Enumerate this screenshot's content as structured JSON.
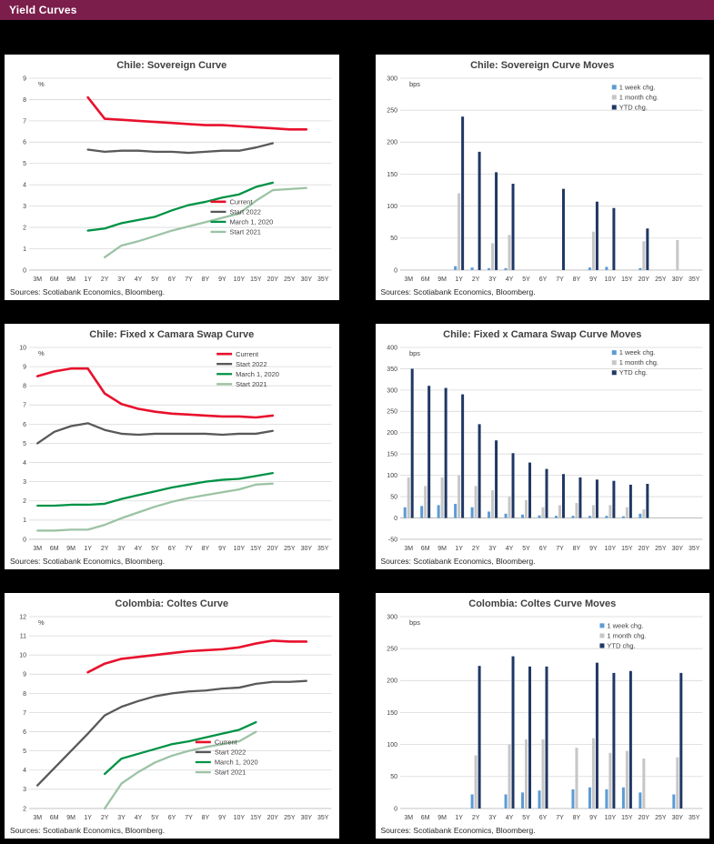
{
  "header": {
    "title": "Yield Curves"
  },
  "labels": {
    "sources": "Sources: Scotiabank Economics, Bloomberg."
  },
  "colors": {
    "header_bg": "#7B1E4B",
    "page_bg": "#000000",
    "panel_bg": "#FFFFFF",
    "current": "#E8112D",
    "start_2022": "#58595B",
    "march_2020": "#009245",
    "start_2021": "#9CC3A5",
    "week_chg": "#5B9BD5",
    "month_chg": "#C6C6C6",
    "ytd_chg": "#1F3864"
  },
  "chart_data": [
    {
      "type": "line",
      "title": "Chile: Sovereign Curve",
      "unit": "%",
      "ylim": [
        0,
        9
      ],
      "ytick": 1,
      "grid": true,
      "legend": {
        "x": 0.6,
        "y": 0.62
      },
      "categories": [
        "3M",
        "6M",
        "9M",
        "1Y",
        "2Y",
        "3Y",
        "4Y",
        "5Y",
        "6Y",
        "7Y",
        "8Y",
        "9Y",
        "10Y",
        "15Y",
        "20Y",
        "25Y",
        "30Y",
        "35Y"
      ],
      "series": [
        {
          "name": "Current",
          "color": "#E8112D",
          "values": [
            null,
            null,
            null,
            8.1,
            7.1,
            7.05,
            7.0,
            6.95,
            6.9,
            6.85,
            6.8,
            6.8,
            6.75,
            6.7,
            6.65,
            6.6,
            6.6,
            null
          ]
        },
        {
          "name": "Start 2022",
          "color": "#58595B",
          "values": [
            null,
            null,
            null,
            5.65,
            5.55,
            5.6,
            5.6,
            5.55,
            5.55,
            5.5,
            5.55,
            5.6,
            5.6,
            5.75,
            5.95,
            null,
            null,
            null
          ]
        },
        {
          "name": "March 1, 2020",
          "color": "#009245",
          "values": [
            null,
            null,
            null,
            1.85,
            1.95,
            2.2,
            2.35,
            2.5,
            2.8,
            3.05,
            3.2,
            3.4,
            3.55,
            3.9,
            4.1,
            null,
            null,
            null
          ]
        },
        {
          "name": "Start 2021",
          "color": "#9CC3A5",
          "values": [
            null,
            null,
            null,
            null,
            0.6,
            1.15,
            1.35,
            1.6,
            1.85,
            2.05,
            2.25,
            2.45,
            2.65,
            3.25,
            3.75,
            3.8,
            3.85,
            null
          ]
        }
      ]
    },
    {
      "type": "bar",
      "title": "Chile: Sovereign Curve Moves",
      "unit": "bps",
      "ylim": [
        0,
        300
      ],
      "ytick": 50,
      "grid": true,
      "legend": {
        "x": 0.7,
        "y": 0.03
      },
      "categories": [
        "3M",
        "6M",
        "9M",
        "1Y",
        "2Y",
        "3Y",
        "4Y",
        "5Y",
        "6Y",
        "7Y",
        "8Y",
        "9Y",
        "10Y",
        "15Y",
        "20Y",
        "25Y",
        "30Y",
        "35Y"
      ],
      "series": [
        {
          "name": "1 week chg.",
          "color": "#5B9BD5",
          "values": [
            0,
            0,
            0,
            6,
            4,
            3,
            3,
            0,
            0,
            0,
            0,
            4,
            5,
            0,
            3,
            0,
            0,
            0
          ]
        },
        {
          "name": "1 month chg.",
          "color": "#C6C6C6",
          "values": [
            0,
            0,
            0,
            120,
            0,
            42,
            55,
            0,
            0,
            0,
            0,
            60,
            0,
            0,
            45,
            0,
            47,
            0
          ]
        },
        {
          "name": "YTD chg.",
          "color": "#1F3864",
          "values": [
            0,
            0,
            0,
            240,
            185,
            153,
            135,
            0,
            0,
            127,
            0,
            107,
            97,
            0,
            65,
            0,
            0,
            0
          ]
        }
      ]
    },
    {
      "type": "line",
      "title": "Chile: Fixed x Camara Swap Curve",
      "unit": "%",
      "ylim": [
        0,
        10
      ],
      "ytick": 1,
      "grid": true,
      "legend": {
        "x": 0.62,
        "y": 0.01
      },
      "categories": [
        "3M",
        "6M",
        "9M",
        "1Y",
        "2Y",
        "3Y",
        "4Y",
        "5Y",
        "6Y",
        "7Y",
        "8Y",
        "9Y",
        "10Y",
        "15Y",
        "20Y",
        "25Y",
        "30Y",
        "35Y"
      ],
      "series": [
        {
          "name": "Current",
          "color": "#E8112D",
          "values": [
            8.5,
            8.75,
            8.9,
            8.9,
            7.6,
            7.05,
            6.8,
            6.65,
            6.55,
            6.5,
            6.45,
            6.4,
            6.4,
            6.35,
            6.45,
            null,
            null,
            null
          ]
        },
        {
          "name": "Start 2022",
          "color": "#58595B",
          "values": [
            5.0,
            5.6,
            5.9,
            6.05,
            5.7,
            5.5,
            5.45,
            5.5,
            5.5,
            5.5,
            5.5,
            5.45,
            5.5,
            5.5,
            5.65,
            null,
            null,
            null
          ]
        },
        {
          "name": "March 1, 2020",
          "color": "#009245",
          "values": [
            1.75,
            1.75,
            1.8,
            1.8,
            1.85,
            2.1,
            2.3,
            2.5,
            2.7,
            2.85,
            3.0,
            3.1,
            3.15,
            3.3,
            3.45,
            null,
            null,
            null
          ]
        },
        {
          "name": "Start 2021",
          "color": "#9CC3A5",
          "values": [
            0.45,
            0.45,
            0.5,
            0.5,
            0.75,
            1.1,
            1.4,
            1.7,
            1.95,
            2.15,
            2.3,
            2.45,
            2.6,
            2.85,
            2.9,
            null,
            null,
            null
          ]
        }
      ]
    },
    {
      "type": "bar",
      "title": "Chile: Fixed x Camara Swap Curve Moves",
      "unit": "bps",
      "ylim": [
        -50,
        400
      ],
      "ytick": 50,
      "grid": true,
      "legend": {
        "x": 0.7,
        "y": 0.01
      },
      "categories": [
        "3M",
        "6M",
        "9M",
        "1Y",
        "2Y",
        "3Y",
        "4Y",
        "5Y",
        "6Y",
        "7Y",
        "8Y",
        "9Y",
        "10Y",
        "15Y",
        "20Y",
        "25Y",
        "30Y",
        "35Y"
      ],
      "series": [
        {
          "name": "1 week chg.",
          "color": "#5B9BD5",
          "values": [
            25,
            28,
            30,
            33,
            25,
            15,
            10,
            8,
            6,
            5,
            5,
            5,
            5,
            4,
            10,
            0,
            0,
            0
          ]
        },
        {
          "name": "1 month chg.",
          "color": "#C6C6C6",
          "values": [
            95,
            75,
            95,
            100,
            75,
            65,
            50,
            42,
            25,
            30,
            35,
            30,
            30,
            25,
            20,
            0,
            0,
            0
          ]
        },
        {
          "name": "YTD chg.",
          "color": "#1F3864",
          "values": [
            350,
            310,
            305,
            290,
            220,
            182,
            152,
            130,
            115,
            103,
            95,
            90,
            87,
            78,
            80,
            0,
            0,
            0
          ]
        }
      ]
    },
    {
      "type": "line",
      "title": "Colombia: Coltes Curve",
      "unit": "%",
      "ylim": [
        2,
        12
      ],
      "ytick": 1,
      "grid": true,
      "legend": {
        "x": 0.55,
        "y": 0.63
      },
      "categories": [
        "3M",
        "6M",
        "9M",
        "1Y",
        "2Y",
        "3Y",
        "4Y",
        "5Y",
        "6Y",
        "7Y",
        "8Y",
        "9Y",
        "10Y",
        "15Y",
        "20Y",
        "25Y",
        "30Y",
        "35Y"
      ],
      "series": [
        {
          "name": "Current",
          "color": "#E8112D",
          "values": [
            null,
            null,
            null,
            9.1,
            9.55,
            9.8,
            9.9,
            10.0,
            10.1,
            10.2,
            10.25,
            10.3,
            10.4,
            10.6,
            10.75,
            10.7,
            10.7,
            null
          ]
        },
        {
          "name": "Start 2022",
          "color": "#58595B",
          "values": [
            3.2,
            null,
            null,
            5.9,
            6.85,
            7.3,
            7.6,
            7.85,
            8.0,
            8.1,
            8.15,
            8.25,
            8.3,
            8.5,
            8.6,
            8.6,
            8.65,
            null
          ]
        },
        {
          "name": "March 1, 2020",
          "color": "#009245",
          "values": [
            null,
            null,
            null,
            null,
            3.8,
            4.6,
            4.85,
            5.1,
            5.35,
            5.5,
            5.7,
            5.9,
            6.1,
            6.5,
            null,
            null,
            null,
            null
          ]
        },
        {
          "name": "Start 2021",
          "color": "#9CC3A5",
          "values": [
            null,
            null,
            null,
            null,
            2.0,
            3.3,
            3.9,
            4.4,
            4.75,
            5.0,
            5.2,
            5.35,
            5.5,
            6.0,
            null,
            null,
            null,
            null
          ]
        }
      ]
    },
    {
      "type": "bar",
      "title": "Colombia: Coltes Curve Moves",
      "unit": "bps",
      "ylim": [
        0,
        300
      ],
      "ytick": 50,
      "grid": true,
      "legend": {
        "x": 0.66,
        "y": 0.03
      },
      "categories": [
        "3M",
        "6M",
        "9M",
        "1Y",
        "2Y",
        "3Y",
        "4Y",
        "5Y",
        "6Y",
        "7Y",
        "8Y",
        "9Y",
        "10Y",
        "15Y",
        "20Y",
        "25Y",
        "30Y",
        "35Y"
      ],
      "series": [
        {
          "name": "1 week chg.",
          "color": "#5B9BD5",
          "values": [
            0,
            0,
            0,
            0,
            22,
            0,
            22,
            25,
            28,
            0,
            30,
            33,
            30,
            33,
            25,
            0,
            22,
            0
          ]
        },
        {
          "name": "1 month chg.",
          "color": "#C6C6C6",
          "values": [
            0,
            0,
            0,
            0,
            83,
            0,
            100,
            108,
            108,
            0,
            95,
            110,
            87,
            90,
            78,
            0,
            80,
            0
          ]
        },
        {
          "name": "YTD chg.",
          "color": "#1F3864",
          "values": [
            0,
            0,
            0,
            0,
            223,
            0,
            238,
            222,
            222,
            0,
            0,
            228,
            212,
            215,
            0,
            0,
            212,
            0
          ]
        }
      ]
    }
  ]
}
